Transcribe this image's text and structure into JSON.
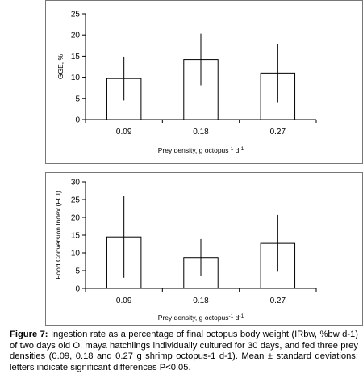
{
  "chart_data": [
    {
      "type": "bar",
      "categories": [
        "0.09",
        "0.18",
        "0.27"
      ],
      "values": [
        9.7,
        14.2,
        11.0
      ],
      "errors": [
        5.2,
        6.1,
        6.9
      ],
      "ylabel": "GGE, %",
      "xlabel_main": "Prey density, g octopus",
      "xlabel_sup1": "-1",
      "xlabel_d": " d",
      "xlabel_sup2": "-1",
      "ylim": [
        0,
        25
      ],
      "yticks": [
        0,
        5,
        10,
        15,
        20,
        25
      ],
      "grid": false,
      "legend": "none"
    },
    {
      "type": "bar",
      "categories": [
        "0.09",
        "0.18",
        "0.27"
      ],
      "values": [
        14.5,
        8.7,
        12.7
      ],
      "errors": [
        11.5,
        5.2,
        8.0
      ],
      "ylabel": "Food Conversion Index (FCI)",
      "xlabel_main": "Prey density, g octopus",
      "xlabel_sup1": "-1",
      "xlabel_d": " d",
      "xlabel_sup2": "-1",
      "ylim": [
        0,
        30
      ],
      "yticks": [
        0,
        5,
        10,
        15,
        20,
        25,
        30
      ],
      "grid": false,
      "legend": "none"
    }
  ],
  "caption": {
    "label": "Figure 7:",
    "text": " Ingestion rate as a percentage of final octopus body weight (IRbw, %bw d-1) of two days old O. maya hatchlings individually cultured for 30 days, and fed three prey densities (0.09, 0.18 and 0.27 g shrimp octopus-1 d-1). Mean ± standard deviations; letters indicate significant differences P<0.05."
  }
}
